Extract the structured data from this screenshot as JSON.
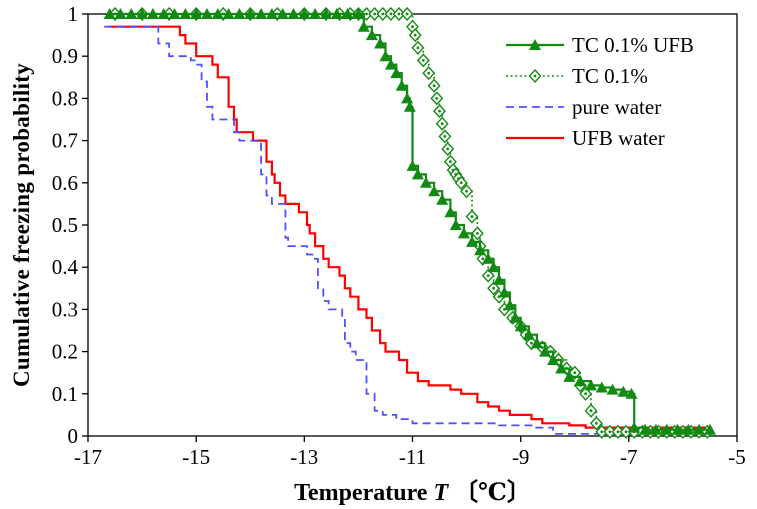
{
  "figure": {
    "ylabel": "Cumulative freezing probability",
    "xlabel_pre": "Temperature ",
    "xlabel_italic": "T",
    "xlabel_post": " 〔℃〕",
    "background": "#ffffff",
    "axis_color": "#000000"
  },
  "chart_data": {
    "type": "line",
    "subtype": "step-cdf",
    "title": "",
    "xlabel": "Temperature T 〔℃〕",
    "ylabel": "Cumulative freezing probability",
    "xlim": [
      -17,
      -5
    ],
    "ylim": [
      0,
      1
    ],
    "xticks": [
      -17,
      -15,
      -13,
      -11,
      -9,
      -7,
      -5
    ],
    "xtick_labels": [
      "-17",
      "-15",
      "-13",
      "-11",
      "-9",
      "-7",
      "-5"
    ],
    "yticks": [
      0,
      0.1,
      0.2,
      0.3,
      0.4,
      0.5,
      0.6,
      0.7,
      0.8,
      0.9,
      1
    ],
    "ytick_labels": [
      "0",
      "0.1",
      "0.2",
      "0.3",
      "0.4",
      "0.5",
      "0.6",
      "0.7",
      "0.8",
      "0.9",
      "1"
    ],
    "grid": false,
    "legend_position": "upper-right-inside",
    "series": [
      {
        "name": "TC 0.1% UFB",
        "color": "#128a12",
        "line": "solid",
        "marker": "triangle-filled",
        "points": [
          [
            -16.6,
            1
          ],
          [
            -16.4,
            1
          ],
          [
            -16.2,
            1
          ],
          [
            -16.0,
            1
          ],
          [
            -15.8,
            1
          ],
          [
            -15.6,
            1
          ],
          [
            -15.4,
            1
          ],
          [
            -15.2,
            1
          ],
          [
            -15.0,
            1
          ],
          [
            -14.8,
            1
          ],
          [
            -14.6,
            1
          ],
          [
            -14.4,
            1
          ],
          [
            -14.2,
            1
          ],
          [
            -14.0,
            1
          ],
          [
            -13.8,
            1
          ],
          [
            -13.6,
            1
          ],
          [
            -13.4,
            1
          ],
          [
            -13.2,
            1
          ],
          [
            -13.0,
            1
          ],
          [
            -12.8,
            1
          ],
          [
            -12.6,
            1
          ],
          [
            -12.4,
            1
          ],
          [
            -12.2,
            1
          ],
          [
            -12.0,
            1
          ],
          [
            -11.9,
            0.97
          ],
          [
            -11.75,
            0.95
          ],
          [
            -11.6,
            0.93
          ],
          [
            -11.5,
            0.9
          ],
          [
            -11.4,
            0.88
          ],
          [
            -11.3,
            0.86
          ],
          [
            -11.2,
            0.83
          ],
          [
            -11.1,
            0.8
          ],
          [
            -11.05,
            0.78
          ],
          [
            -11.0,
            0.64
          ],
          [
            -10.9,
            0.62
          ],
          [
            -10.75,
            0.6
          ],
          [
            -10.6,
            0.58
          ],
          [
            -10.45,
            0.56
          ],
          [
            -10.3,
            0.53
          ],
          [
            -10.2,
            0.5
          ],
          [
            -10.05,
            0.48
          ],
          [
            -9.9,
            0.46
          ],
          [
            -9.75,
            0.44
          ],
          [
            -9.6,
            0.42
          ],
          [
            -9.5,
            0.4
          ],
          [
            -9.4,
            0.37
          ],
          [
            -9.3,
            0.34
          ],
          [
            -9.2,
            0.31
          ],
          [
            -9.1,
            0.28
          ],
          [
            -9.0,
            0.26
          ],
          [
            -8.85,
            0.24
          ],
          [
            -8.7,
            0.22
          ],
          [
            -8.55,
            0.2
          ],
          [
            -8.4,
            0.18
          ],
          [
            -8.25,
            0.16
          ],
          [
            -8.1,
            0.14
          ],
          [
            -7.9,
            0.13
          ],
          [
            -7.7,
            0.12
          ],
          [
            -7.5,
            0.115
          ],
          [
            -7.3,
            0.11
          ],
          [
            -7.1,
            0.105
          ],
          [
            -6.95,
            0.1
          ],
          [
            -6.9,
            0.02
          ],
          [
            -6.7,
            0.015
          ],
          [
            -6.5,
            0.015
          ],
          [
            -6.3,
            0.015
          ],
          [
            -6.1,
            0.015
          ],
          [
            -5.9,
            0.015
          ],
          [
            -5.7,
            0.015
          ],
          [
            -5.5,
            0.015
          ]
        ]
      },
      {
        "name": "TC 0.1%",
        "color": "#128a12",
        "line": "dotted",
        "marker": "diamond-open",
        "points": [
          [
            -16.5,
            1
          ],
          [
            -16.0,
            1
          ],
          [
            -15.5,
            1
          ],
          [
            -15.0,
            1
          ],
          [
            -14.5,
            1
          ],
          [
            -14.0,
            1
          ],
          [
            -13.5,
            1
          ],
          [
            -13.0,
            1
          ],
          [
            -12.6,
            1
          ],
          [
            -12.35,
            1
          ],
          [
            -12.15,
            1
          ],
          [
            -12.0,
            1
          ],
          [
            -11.85,
            1
          ],
          [
            -11.7,
            1
          ],
          [
            -11.55,
            1
          ],
          [
            -11.4,
            1
          ],
          [
            -11.25,
            1
          ],
          [
            -11.1,
            1
          ],
          [
            -11.0,
            0.97
          ],
          [
            -10.95,
            0.95
          ],
          [
            -10.9,
            0.92
          ],
          [
            -10.8,
            0.89
          ],
          [
            -10.7,
            0.86
          ],
          [
            -10.6,
            0.83
          ],
          [
            -10.55,
            0.8
          ],
          [
            -10.5,
            0.77
          ],
          [
            -10.45,
            0.74
          ],
          [
            -10.4,
            0.71
          ],
          [
            -10.35,
            0.68
          ],
          [
            -10.3,
            0.65
          ],
          [
            -10.25,
            0.63
          ],
          [
            -10.2,
            0.62
          ],
          [
            -10.15,
            0.61
          ],
          [
            -10.1,
            0.6
          ],
          [
            -10.0,
            0.58
          ],
          [
            -9.9,
            0.52
          ],
          [
            -9.8,
            0.48
          ],
          [
            -9.75,
            0.45
          ],
          [
            -9.7,
            0.42
          ],
          [
            -9.6,
            0.38
          ],
          [
            -9.5,
            0.35
          ],
          [
            -9.4,
            0.33
          ],
          [
            -9.3,
            0.3
          ],
          [
            -9.15,
            0.28
          ],
          [
            -9.0,
            0.26
          ],
          [
            -8.9,
            0.24
          ],
          [
            -8.8,
            0.22
          ],
          [
            -8.6,
            0.21
          ],
          [
            -8.45,
            0.2
          ],
          [
            -8.3,
            0.18
          ],
          [
            -8.15,
            0.16
          ],
          [
            -8.0,
            0.15
          ],
          [
            -7.9,
            0.12
          ],
          [
            -7.8,
            0.1
          ],
          [
            -7.7,
            0.06
          ],
          [
            -7.6,
            0.03
          ],
          [
            -7.5,
            0.01
          ],
          [
            -7.35,
            0.01
          ],
          [
            -7.2,
            0.01
          ],
          [
            -7.05,
            0.01
          ],
          [
            -6.9,
            0.01
          ],
          [
            -6.75,
            0.01
          ],
          [
            -6.6,
            0.01
          ],
          [
            -6.45,
            0.01
          ],
          [
            -6.3,
            0.01
          ],
          [
            -6.15,
            0.01
          ],
          [
            -6.0,
            0.01
          ],
          [
            -5.85,
            0.01
          ],
          [
            -5.7,
            0.01
          ],
          [
            -5.55,
            0.01
          ]
        ]
      },
      {
        "name": "pure water",
        "color": "#5050ff",
        "line": "dashed",
        "marker": "none",
        "points": [
          [
            -16.7,
            0.97
          ],
          [
            -15.9,
            0.97
          ],
          [
            -15.7,
            0.93
          ],
          [
            -15.5,
            0.9
          ],
          [
            -15.1,
            0.89
          ],
          [
            -15.0,
            0.88
          ],
          [
            -14.9,
            0.84
          ],
          [
            -14.8,
            0.78
          ],
          [
            -14.7,
            0.75
          ],
          [
            -14.35,
            0.75
          ],
          [
            -14.3,
            0.72
          ],
          [
            -14.2,
            0.7
          ],
          [
            -13.9,
            0.7
          ],
          [
            -13.8,
            0.62
          ],
          [
            -13.7,
            0.57
          ],
          [
            -13.6,
            0.55
          ],
          [
            -13.4,
            0.55
          ],
          [
            -13.35,
            0.47
          ],
          [
            -13.3,
            0.45
          ],
          [
            -13.0,
            0.45
          ],
          [
            -12.95,
            0.43
          ],
          [
            -12.85,
            0.42
          ],
          [
            -12.75,
            0.35
          ],
          [
            -12.65,
            0.32
          ],
          [
            -12.55,
            0.3
          ],
          [
            -12.35,
            0.3
          ],
          [
            -12.3,
            0.28
          ],
          [
            -12.25,
            0.22
          ],
          [
            -12.15,
            0.2
          ],
          [
            -12.05,
            0.18
          ],
          [
            -11.85,
            0.1
          ],
          [
            -11.7,
            0.06
          ],
          [
            -11.55,
            0.05
          ],
          [
            -11.3,
            0.04
          ],
          [
            -11.0,
            0.03
          ],
          [
            -9.6,
            0.03
          ],
          [
            -9.4,
            0.025
          ],
          [
            -8.8,
            0.02
          ],
          [
            -8.4,
            0.005
          ],
          [
            -7.4,
            0.005
          ]
        ]
      },
      {
        "name": "UFB water",
        "color": "#ff0000",
        "line": "solid",
        "marker": "none",
        "points": [
          [
            -16.6,
            0.97
          ],
          [
            -15.35,
            0.97
          ],
          [
            -15.3,
            0.95
          ],
          [
            -15.2,
            0.93
          ],
          [
            -15.0,
            0.9
          ],
          [
            -14.75,
            0.9
          ],
          [
            -14.7,
            0.88
          ],
          [
            -14.6,
            0.85
          ],
          [
            -14.45,
            0.85
          ],
          [
            -14.4,
            0.78
          ],
          [
            -14.3,
            0.75
          ],
          [
            -14.25,
            0.72
          ],
          [
            -14.0,
            0.72
          ],
          [
            -13.95,
            0.7
          ],
          [
            -13.75,
            0.7
          ],
          [
            -13.7,
            0.65
          ],
          [
            -13.6,
            0.62
          ],
          [
            -13.55,
            0.6
          ],
          [
            -13.45,
            0.57
          ],
          [
            -13.35,
            0.55
          ],
          [
            -13.15,
            0.55
          ],
          [
            -13.1,
            0.53
          ],
          [
            -12.95,
            0.5
          ],
          [
            -12.9,
            0.48
          ],
          [
            -12.8,
            0.45
          ],
          [
            -12.65,
            0.42
          ],
          [
            -12.55,
            0.4
          ],
          [
            -12.4,
            0.4
          ],
          [
            -12.35,
            0.38
          ],
          [
            -12.25,
            0.35
          ],
          [
            -12.15,
            0.33
          ],
          [
            -12.0,
            0.3
          ],
          [
            -11.85,
            0.28
          ],
          [
            -11.75,
            0.25
          ],
          [
            -11.6,
            0.22
          ],
          [
            -11.5,
            0.2
          ],
          [
            -11.3,
            0.2
          ],
          [
            -11.25,
            0.18
          ],
          [
            -11.1,
            0.15
          ],
          [
            -10.9,
            0.13
          ],
          [
            -10.7,
            0.12
          ],
          [
            -10.4,
            0.12
          ],
          [
            -10.3,
            0.11
          ],
          [
            -10.1,
            0.1
          ],
          [
            -9.9,
            0.1
          ],
          [
            -9.8,
            0.08
          ],
          [
            -9.6,
            0.07
          ],
          [
            -9.4,
            0.06
          ],
          [
            -9.2,
            0.05
          ],
          [
            -8.9,
            0.05
          ],
          [
            -8.8,
            0.04
          ],
          [
            -8.6,
            0.03
          ],
          [
            -8.2,
            0.03
          ],
          [
            -8.1,
            0.025
          ],
          [
            -7.8,
            0.02
          ],
          [
            -5.5,
            0.02
          ]
        ]
      }
    ]
  }
}
